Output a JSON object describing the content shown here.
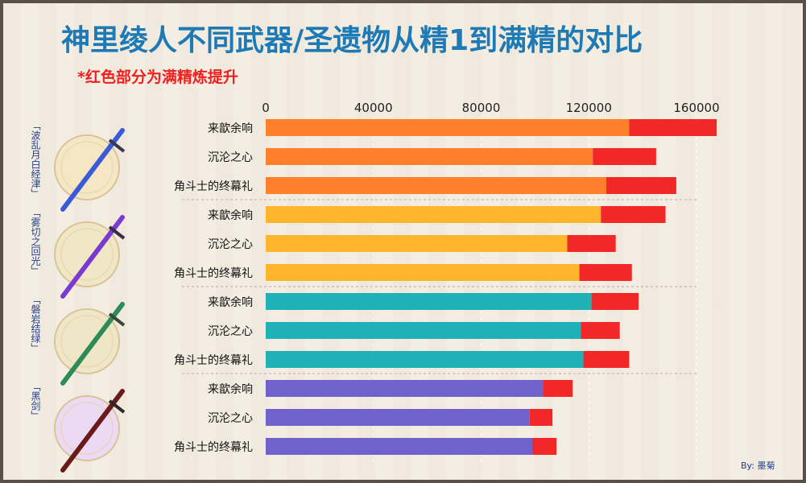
{
  "header": {
    "title": "神里绫人不同武器/圣遗物从精1到满精的对比",
    "note": "*红色部分为满精炼提升"
  },
  "weapons": [
    {
      "name": "「波乱月白经津」",
      "glow": "#f5e6c4",
      "blade": "#3a5ad8",
      "hilt": "#3a3a4a"
    },
    {
      "name": "「雾切之回光」",
      "glow": "#f1e6c6",
      "blade": "#7a3ad0",
      "hilt": "#3a2a4a"
    },
    {
      "name": "「磐岩结绿」",
      "glow": "#efe6c8",
      "blade": "#2e8a56",
      "hilt": "#3a4a3a"
    },
    {
      "name": "「黑剑」",
      "glow": "#ecd9f2",
      "blade": "#6a1a1a",
      "hilt": "#2a2a2a"
    }
  ],
  "footer": {
    "credit": "By: 墨菊"
  },
  "chart_data": {
    "type": "bar",
    "orientation": "horizontal",
    "stacked": true,
    "title": "神里绫人不同武器/圣遗物从精1到满精的对比",
    "subtitle": "*红色部分为满精炼提升",
    "xlim": [
      0,
      170000
    ],
    "xticks": [
      0,
      40000,
      80000,
      120000,
      160000
    ],
    "xtick_labels": [
      "0",
      "40000",
      "80000",
      "120000",
      "160000"
    ],
    "categories": [
      "来歆余响",
      "沉沦之心",
      "角斗士的终幕礼"
    ],
    "colors": {
      "refine_gain": "#f22727",
      "groups": [
        "#ff7f2a",
        "#ffb52c",
        "#20b1b6",
        "#6f62cd"
      ]
    },
    "groups": [
      {
        "weapon": "「波乱月白经津」",
        "base": [
          135000,
          121500,
          126500
        ],
        "total": [
          167500,
          145000,
          152500
        ]
      },
      {
        "weapon": "「雾切之回光」",
        "base": [
          124500,
          112000,
          116500
        ],
        "total": [
          148500,
          130000,
          136000
        ]
      },
      {
        "weapon": "「磐岩结绿」",
        "base": [
          121000,
          117000,
          118000
        ],
        "total": [
          138500,
          131500,
          135000
        ]
      },
      {
        "weapon": "「黑剑」",
        "base": [
          103000,
          98000,
          99000
        ],
        "total": [
          114000,
          106500,
          108000
        ]
      }
    ]
  }
}
